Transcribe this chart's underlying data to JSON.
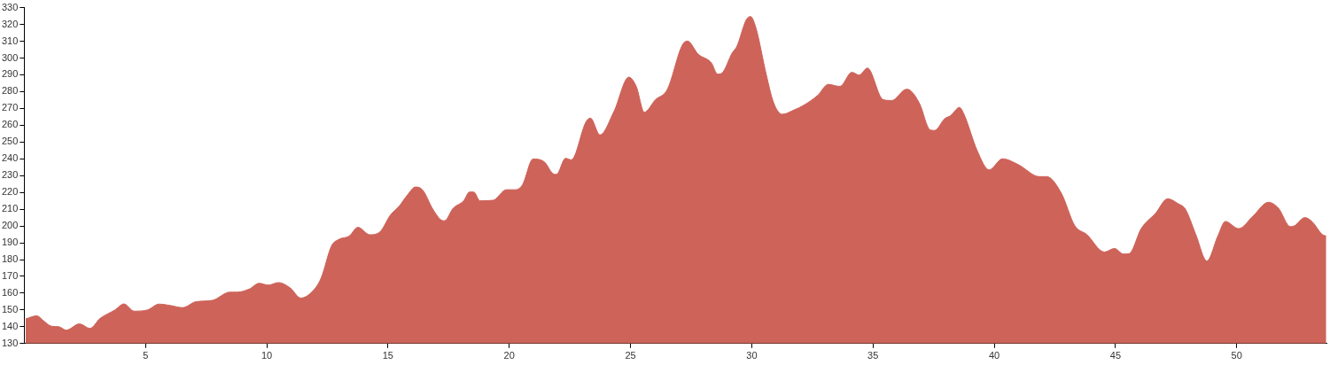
{
  "chart_data": {
    "type": "area",
    "color": "#cd6359",
    "xlim": [
      0,
      53.7
    ],
    "xticks": [
      5,
      10,
      15,
      20,
      25,
      30,
      35,
      40,
      45,
      50
    ],
    "ylim": [
      130,
      330
    ],
    "yticks": [
      130,
      140,
      150,
      160,
      170,
      180,
      190,
      200,
      210,
      220,
      230,
      240,
      250,
      260,
      270,
      280,
      290,
      300,
      310,
      320,
      330
    ],
    "grid": false,
    "legend": false,
    "x": [
      0.06,
      0.52,
      0.8,
      1.13,
      1.43,
      1.73,
      2.28,
      2.71,
      3.13,
      3.74,
      4.11,
      4.53,
      5.08,
      5.56,
      6.05,
      6.53,
      7.08,
      7.75,
      8.48,
      8.78,
      9.27,
      9.69,
      10.06,
      10.48,
      10.97,
      11.4,
      11.88,
      12.24,
      12.67,
      12.97,
      13.4,
      13.76,
      14.25,
      14.67,
      15.1,
      15.46,
      15.82,
      16.13,
      16.43,
      16.85,
      17.16,
      17.33,
      17.69,
      18.12,
      18.36,
      18.54,
      18.79,
      19.33,
      19.88,
      20.25,
      20.55,
      20.98,
      21.46,
      21.77,
      21.95,
      22.32,
      22.56,
      23.17,
      23.35,
      23.74,
      24.32,
      24.93,
      25.24,
      25.57,
      26.03,
      26.52,
      27.13,
      27.35,
      27.79,
      28.34,
      28.59,
      28.77,
      29.2,
      29.38,
      29.78,
      29.95,
      30.17,
      30.6,
      30.9,
      31.26,
      31.75,
      32.12,
      32.73,
      33.15,
      33.64,
      34.13,
      34.43,
      34.77,
      35.41,
      35.77,
      36.38,
      36.56,
      36.93,
      37.35,
      37.54,
      37.96,
      38.2,
      38.57,
      38.75,
      39.3,
      39.79,
      40.34,
      41.0,
      41.86,
      42.16,
      42.77,
      43.32,
      43.81,
      44.54,
      44.96,
      45.33,
      45.57,
      46.06,
      46.66,
      47.15,
      47.58,
      47.88,
      48.31,
      48.77,
      49.22,
      49.53,
      50.08,
      50.69,
      51.3,
      51.72,
      52.21,
      52.39,
      52.81,
      53.12,
      53.52,
      53.69
    ],
    "values": [
      144.7,
      146.5,
      143.5,
      140.3,
      140,
      138,
      141.7,
      139,
      145,
      150,
      153.6,
      149.3,
      150,
      153.5,
      152.6,
      151.4,
      154.9,
      155.7,
      160.6,
      160.6,
      162.4,
      165.9,
      164.8,
      166.3,
      163.1,
      157.1,
      161,
      168.9,
      188.1,
      192,
      194,
      199.2,
      194.8,
      196.5,
      206.5,
      211.8,
      218.8,
      223.2,
      221.4,
      210,
      203.9,
      203.1,
      210.6,
      215,
      220.2,
      220.2,
      215,
      215.3,
      221.6,
      221.6,
      224.6,
      239.9,
      238,
      231.6,
      230.7,
      240.3,
      239.4,
      262.1,
      264.2,
      254.2,
      268.2,
      288.6,
      283,
      267.7,
      275.2,
      281.3,
      307.5,
      310.1,
      302.3,
      297,
      290.4,
      291,
      303.2,
      306.7,
      322.9,
      324.7,
      318.1,
      290.1,
      273.5,
      266.5,
      269.1,
      271.7,
      277.9,
      284.3,
      283.1,
      291.5,
      289.8,
      294,
      275.3,
      274.7,
      281.4,
      280.5,
      272.6,
      257.3,
      256.9,
      263.9,
      265.7,
      270.6,
      266.6,
      244.8,
      233.4,
      240,
      236.5,
      229.4,
      229.4,
      219.4,
      200.2,
      195,
      184.5,
      186.6,
      183.3,
      183.6,
      198.4,
      207.7,
      216.2,
      213.3,
      210.1,
      195,
      179.2,
      194,
      202.7,
      198.4,
      206.2,
      214.1,
      210.6,
      199.6,
      200.2,
      205,
      202.4,
      195,
      194
    ]
  }
}
